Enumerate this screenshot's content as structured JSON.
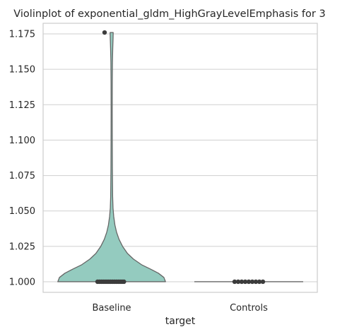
{
  "chart_data": {
    "type": "violin",
    "title": "Violinplot of exponential_gldm_HighGrayLevelEmphasis for 3",
    "xlabel": "target",
    "ylabel": "",
    "categories": [
      "Baseline",
      "Controls"
    ],
    "ylim": [
      0.9925,
      1.1825
    ],
    "yticks": [
      1.0,
      1.025,
      1.05,
      1.075,
      1.1,
      1.125,
      1.15,
      1.175
    ],
    "ytick_labels": [
      "1.000",
      "1.025",
      "1.050",
      "1.075",
      "1.100",
      "1.125",
      "1.150",
      "1.175"
    ],
    "grid": "horizontal",
    "cut": 0,
    "violins": [
      {
        "category": "Baseline",
        "color": "#94cbbf",
        "density": [
          [
            1.0,
            0.99
          ],
          [
            1.003,
            0.96
          ],
          [
            1.006,
            0.86
          ],
          [
            1.009,
            0.71
          ],
          [
            1.012,
            0.55
          ],
          [
            1.016,
            0.4
          ],
          [
            1.02,
            0.29
          ],
          [
            1.025,
            0.2
          ],
          [
            1.03,
            0.135
          ],
          [
            1.035,
            0.09
          ],
          [
            1.04,
            0.06
          ],
          [
            1.046,
            0.038
          ],
          [
            1.052,
            0.025
          ],
          [
            1.06,
            0.018
          ],
          [
            1.08,
            0.013
          ],
          [
            1.1,
            0.011
          ],
          [
            1.12,
            0.01
          ],
          [
            1.14,
            0.011
          ],
          [
            1.155,
            0.014
          ],
          [
            1.165,
            0.02
          ],
          [
            1.172,
            0.026
          ],
          [
            1.176,
            0.028
          ]
        ],
        "points": [
          1.0,
          1.0,
          1.0,
          1.0,
          1.0,
          1.0,
          1.0,
          1.0,
          1.0,
          1.0,
          1.0,
          1.0,
          1.0,
          1.0,
          1.0,
          1.176
        ]
      },
      {
        "category": "Controls",
        "color": "#94cbbf",
        "density": [],
        "points": [
          1.0,
          1.0,
          1.0,
          1.0,
          1.0,
          1.0,
          1.0,
          1.0,
          1.0
        ]
      }
    ],
    "outline_color": "#666666",
    "point_color": "#3c3c3c",
    "grid_color": "#cfcfcf",
    "frame_color": "#cccccc"
  }
}
